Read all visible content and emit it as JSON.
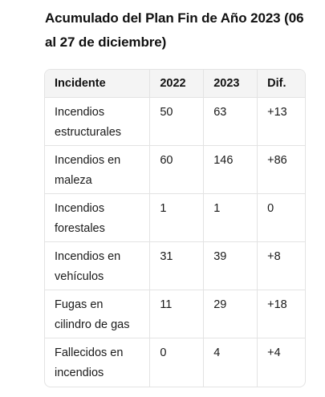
{
  "title": "Acumulado del Plan Fin de Año 2023 (06 al 27 de diciembre)",
  "table": {
    "headers": [
      "Incidente",
      "2022",
      "2023",
      "Dif."
    ],
    "rows": [
      [
        "Incendios estructurales",
        "50",
        "63",
        "+13"
      ],
      [
        "Incendios en maleza",
        "60",
        "146",
        "+86"
      ],
      [
        "Incendios forestales",
        "1",
        "1",
        "0"
      ],
      [
        "Incendios en vehículos",
        "31",
        "39",
        "+8"
      ],
      [
        "Fugas en cilindro de gas",
        "11",
        "29",
        "+18"
      ],
      [
        "Fallecidos en incendios",
        "0",
        "4",
        "+4"
      ]
    ]
  }
}
